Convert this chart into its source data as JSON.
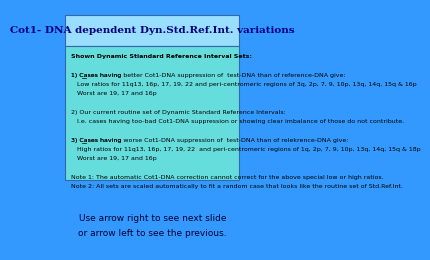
{
  "title": "Cot1- DNA dependent Dyn.Std.Ref.Int. variations",
  "bg_color": "#3399ff",
  "title_bg": "#99ddff",
  "title_color": "#000080",
  "box_bg": "#66dddd",
  "box_border": "#3366aa",
  "body_lines": [
    {
      "text": "Shown Dynamic Stiandard Reference Interval Sets:",
      "bold": true,
      "indent": 0
    },
    {
      "text": "",
      "bold": false,
      "indent": 0
    },
    {
      "text": "1) Cases having better Cot1-DNA suppression of  test-DNA than of reference-DNA give:",
      "bold": false,
      "indent": 0,
      "underline": "better"
    },
    {
      "text": "   Low ratios for 11q13, 16p, 17, 19, 22 and peri-centromeric regions of 3q, 2p, 7, 9, 10p, 13q, 14q, 15q & 16p",
      "bold": false,
      "indent": 1
    },
    {
      "text": "   Worst are 19, 17 and 16p",
      "bold": false,
      "indent": 1
    },
    {
      "text": "",
      "bold": false,
      "indent": 0
    },
    {
      "text": "2) Our current routine set of Dynamic Standard Reference Intervals:",
      "bold": false,
      "indent": 0
    },
    {
      "text": "   I.e. cases having too-bad Cot1-DNA suppression or showing clear imbalance of those do not contribute.",
      "bold": false,
      "indent": 1
    },
    {
      "text": "",
      "bold": false,
      "indent": 0
    },
    {
      "text": "3) Cases having worse Cot1-DNA suppression of  test-DNA than of relekrence-DNA give:",
      "bold": false,
      "indent": 0,
      "underline": "worse"
    },
    {
      "text": "   High ratios for 11q13, 16p, 17, 19, 22  and peri-centromeric regions of 1q, 2p, 7, 9, 10p, 13q, 14q, 15q & 18p",
      "bold": false,
      "indent": 1
    },
    {
      "text": "   Worst are 19, 17 and 16p",
      "bold": false,
      "indent": 1
    },
    {
      "text": "",
      "bold": false,
      "indent": 0
    },
    {
      "text": "Note 1: The automatic Cot1-DNA correction cannot correct for the above special low or high ratios.",
      "bold": false,
      "indent": 0
    },
    {
      "text": "Note 2: All sets are scaled automatically to fit a random case that looks like the routine set of Std.Ref.Int.",
      "bold": false,
      "indent": 0
    }
  ],
  "footer_line1": "Use arrow right to see next slide",
  "footer_line2": "or arrow left to see the previous.",
  "footer_color": "#000033"
}
